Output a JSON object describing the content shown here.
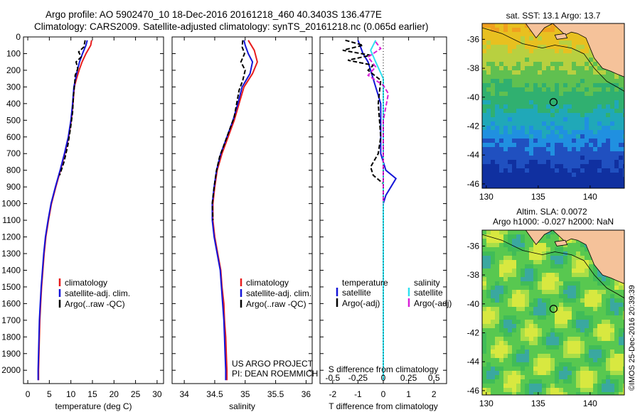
{
  "header": {
    "line1": "Argo profile: AO 5902470_10 18-Dec-2016 20161218_460 40.3403S 136.477E",
    "line2": "Climatology: CARS2009. Satellite-adjusted climatology: synTS_20161218.nc (0.065d earlier)"
  },
  "side_stamp": "©IMOS 25-Dec-2016 20:39:39",
  "colors": {
    "climatology": "#e81c1c",
    "satellite": "#1515d8",
    "argo": "#000000",
    "sal_satellite": "#30e0f0",
    "sal_argo": "#d820d8",
    "land": "#f5c29a"
  },
  "chart_data": [
    {
      "type": "line",
      "name": "temperature-profile",
      "xlabel": "temperature (deg C)",
      "ylabel": "",
      "xlim": [
        -1,
        31.5
      ],
      "ylim": [
        0,
        2080
      ],
      "xticks": [
        0,
        5,
        10,
        15,
        20,
        25,
        30
      ],
      "yticks": [
        0,
        100,
        200,
        300,
        400,
        500,
        600,
        700,
        800,
        900,
        1000,
        1100,
        1200,
        1300,
        1400,
        1500,
        1600,
        1700,
        1800,
        1900,
        2000
      ],
      "legend": [
        "climatology",
        "satellite-adj. clim.",
        "Argo(..raw -QC)"
      ],
      "series": [
        {
          "name": "climatology",
          "points": [
            [
              14.8,
              20
            ],
            [
              14.6,
              50
            ],
            [
              13.5,
              100
            ],
            [
              12.6,
              150
            ],
            [
              11.9,
              200
            ],
            [
              11.3,
              250
            ],
            [
              10.8,
              300
            ],
            [
              10.5,
              400
            ],
            [
              10.1,
              500
            ],
            [
              9.5,
              600
            ],
            [
              8.6,
              700
            ],
            [
              7.6,
              800
            ],
            [
              6.5,
              900
            ],
            [
              5.5,
              1000
            ],
            [
              4.8,
              1100
            ],
            [
              4.2,
              1200
            ],
            [
              3.8,
              1300
            ],
            [
              3.5,
              1400
            ],
            [
              3.2,
              1500
            ],
            [
              3.0,
              1600
            ],
            [
              2.8,
              1700
            ],
            [
              2.7,
              1800
            ],
            [
              2.6,
              1900
            ],
            [
              2.5,
              2000
            ],
            [
              2.5,
              2060
            ]
          ]
        },
        {
          "name": "satellite-adj. clim.",
          "points": [
            [
              13.8,
              20
            ],
            [
              13.5,
              50
            ],
            [
              12.7,
              100
            ],
            [
              12.0,
              150
            ],
            [
              11.5,
              200
            ],
            [
              11.1,
              250
            ],
            [
              10.7,
              300
            ],
            [
              10.4,
              400
            ],
            [
              10.0,
              500
            ],
            [
              9.4,
              600
            ],
            [
              8.5,
              700
            ],
            [
              7.5,
              800
            ],
            [
              6.4,
              900
            ],
            [
              5.4,
              1000
            ],
            [
              4.7,
              1100
            ],
            [
              4.1,
              1200
            ],
            [
              3.7,
              1300
            ],
            [
              3.4,
              1400
            ],
            [
              3.1,
              1500
            ],
            [
              2.9,
              1600
            ],
            [
              2.7,
              1700
            ],
            [
              2.6,
              1800
            ],
            [
              2.5,
              1900
            ],
            [
              2.4,
              2000
            ],
            [
              2.4,
              2060
            ]
          ]
        },
        {
          "name": "Argo(..raw -QC)",
          "points": [
            [
              13.3,
              20
            ],
            [
              13.0,
              60
            ],
            [
              11.8,
              90
            ],
            [
              12.4,
              120
            ],
            [
              11.2,
              150
            ],
            [
              11.6,
              190
            ],
            [
              11.0,
              230
            ],
            [
              10.9,
              280
            ],
            [
              10.6,
              350
            ],
            [
              10.4,
              450
            ],
            [
              9.9,
              550
            ],
            [
              9.3,
              650
            ],
            [
              8.4,
              750
            ],
            [
              7.4,
              830
            ]
          ]
        }
      ]
    },
    {
      "type": "line",
      "name": "salinity-profile",
      "xlabel": "salinity",
      "ylabel": "",
      "xlim": [
        33.8,
        36.1
      ],
      "ylim": [
        0,
        2080
      ],
      "xticks": [
        34,
        34.5,
        35,
        35.5,
        36
      ],
      "legend": [
        "climatology",
        "satellite-adj. clim.",
        "Argo(..raw -QC)"
      ],
      "annotation": [
        "US ARGO PROJECT",
        "PI: DEAN ROEMMICH"
      ],
      "series": [
        {
          "name": "climatology",
          "points": [
            [
              35.05,
              20
            ],
            [
              35.15,
              80
            ],
            [
              35.2,
              150
            ],
            [
              35.12,
              220
            ],
            [
              34.98,
              300
            ],
            [
              34.9,
              400
            ],
            [
              34.82,
              500
            ],
            [
              34.72,
              600
            ],
            [
              34.62,
              700
            ],
            [
              34.54,
              800
            ],
            [
              34.5,
              900
            ],
            [
              34.47,
              1000
            ],
            [
              34.47,
              1100
            ],
            [
              34.5,
              1200
            ],
            [
              34.55,
              1300
            ],
            [
              34.6,
              1400
            ],
            [
              34.62,
              1500
            ],
            [
              34.65,
              1600
            ],
            [
              34.66,
              1700
            ],
            [
              34.68,
              1800
            ],
            [
              34.69,
              1900
            ],
            [
              34.7,
              2000
            ],
            [
              34.7,
              2060
            ]
          ]
        },
        {
          "name": "satellite-adj. clim.",
          "points": [
            [
              34.98,
              20
            ],
            [
              35.0,
              50
            ],
            [
              35.05,
              100
            ],
            [
              35.12,
              150
            ],
            [
              35.08,
              220
            ],
            [
              34.95,
              300
            ],
            [
              34.88,
              400
            ],
            [
              34.8,
              500
            ],
            [
              34.7,
              600
            ],
            [
              34.6,
              700
            ],
            [
              34.53,
              800
            ],
            [
              34.49,
              900
            ],
            [
              34.46,
              1000
            ],
            [
              34.46,
              1100
            ],
            [
              34.49,
              1200
            ],
            [
              34.54,
              1300
            ],
            [
              34.59,
              1400
            ],
            [
              34.61,
              1500
            ],
            [
              34.63,
              1600
            ],
            [
              34.65,
              1700
            ],
            [
              34.66,
              1800
            ],
            [
              34.67,
              1900
            ],
            [
              34.68,
              2000
            ],
            [
              34.68,
              2060
            ]
          ]
        },
        {
          "name": "Argo(..raw -QC)",
          "points": [
            [
              34.96,
              20
            ],
            [
              34.95,
              60
            ],
            [
              34.99,
              100
            ],
            [
              34.93,
              150
            ],
            [
              35.0,
              200
            ],
            [
              34.96,
              260
            ],
            [
              34.9,
              320
            ],
            [
              34.86,
              400
            ],
            [
              34.82,
              480
            ],
            [
              34.74,
              560
            ],
            [
              34.66,
              640
            ],
            [
              34.58,
              720
            ],
            [
              34.53,
              800
            ],
            [
              34.49,
              900
            ],
            [
              34.46,
              1000
            ],
            [
              34.47,
              1100
            ]
          ]
        }
      ]
    },
    {
      "type": "line",
      "name": "difference-profile",
      "xlabel": "T difference from climatology",
      "xlabel2": "S difference from climatology",
      "xlim": [
        -2.5,
        2.5
      ],
      "ylim": [
        0,
        2080
      ],
      "xticks": [
        -2,
        -1,
        0,
        1,
        2
      ],
      "xticks_top_labels": [
        "-0.5",
        "-0.25",
        "0",
        "0.25",
        "0.5"
      ],
      "xticks_top_values": [
        -2,
        -1,
        0,
        1,
        2
      ],
      "legend": [
        "temperature",
        "satellite",
        "Argo(-adj)",
        "salinity",
        "satellite",
        "Argo(-adj)"
      ],
      "series": [
        {
          "name": "temperature satellite",
          "points": [
            [
              -1.0,
              20
            ],
            [
              -0.9,
              60
            ],
            [
              -0.8,
              100
            ],
            [
              -0.6,
              150
            ],
            [
              -0.5,
              200
            ],
            [
              -0.3,
              300
            ],
            [
              -0.1,
              400
            ],
            [
              -0.1,
              500
            ],
            [
              -0.1,
              600
            ],
            [
              -0.1,
              700
            ],
            [
              0.1,
              800
            ],
            [
              0.5,
              850
            ],
            [
              0.3,
              900
            ],
            [
              0.1,
              950
            ],
            [
              0.0,
              1000
            ],
            [
              0.0,
              1500
            ],
            [
              0.0,
              2060
            ]
          ]
        },
        {
          "name": "temperature Argo(-adj)",
          "points": [
            [
              -1.5,
              20
            ],
            [
              -0.8,
              50
            ],
            [
              -1.6,
              80
            ],
            [
              -0.5,
              110
            ],
            [
              -1.4,
              140
            ],
            [
              -0.4,
              170
            ],
            [
              -0.6,
              200
            ],
            [
              -0.1,
              260
            ],
            [
              -0.2,
              400
            ],
            [
              -0.1,
              600
            ],
            [
              -0.2,
              700
            ],
            [
              -0.5,
              780
            ],
            [
              -0.4,
              830
            ],
            [
              0.0,
              880
            ]
          ]
        },
        {
          "name": "salinity satellite",
          "points": [
            [
              -0.3,
              20
            ],
            [
              -0.5,
              80
            ],
            [
              -0.3,
              150
            ],
            [
              0.0,
              250
            ],
            [
              0.0,
              600
            ],
            [
              0.0,
              2060
            ]
          ]
        },
        {
          "name": "salinity Argo(-adj)",
          "points": [
            [
              -0.3,
              30
            ],
            [
              -0.1,
              70
            ],
            [
              -0.6,
              120
            ],
            [
              -0.3,
              180
            ],
            [
              -0.6,
              230
            ],
            [
              0.0,
              290
            ],
            [
              0.2,
              340
            ],
            [
              0.1,
              420
            ],
            [
              0.0,
              500
            ],
            [
              0.0,
              1000
            ]
          ]
        }
      ]
    },
    {
      "type": "heatmap",
      "name": "sst-map",
      "title": "sat. SST: 13.1 Argo: 13.7",
      "xlim": [
        129.6,
        143.3
      ],
      "ylim": [
        -46.3,
        -34.9
      ],
      "xticks": [
        130,
        135,
        140
      ],
      "yticks": [
        -36,
        -38,
        -40,
        -42,
        -44,
        -46
      ],
      "argo_position": [
        136.477,
        -40.3403
      ]
    },
    {
      "type": "heatmap",
      "name": "sla-map",
      "title_line1": "Altim. SLA: 0.0072",
      "title_line2": "Argo h1000: -0.027 h2000: NaN",
      "xlim": [
        129.6,
        143.3
      ],
      "ylim": [
        -46.3,
        -34.9
      ],
      "xticks": [
        130,
        135,
        140
      ],
      "yticks": [
        -36,
        -38,
        -40,
        -42,
        -44,
        -46
      ],
      "argo_position": [
        136.477,
        -40.3403
      ]
    }
  ]
}
